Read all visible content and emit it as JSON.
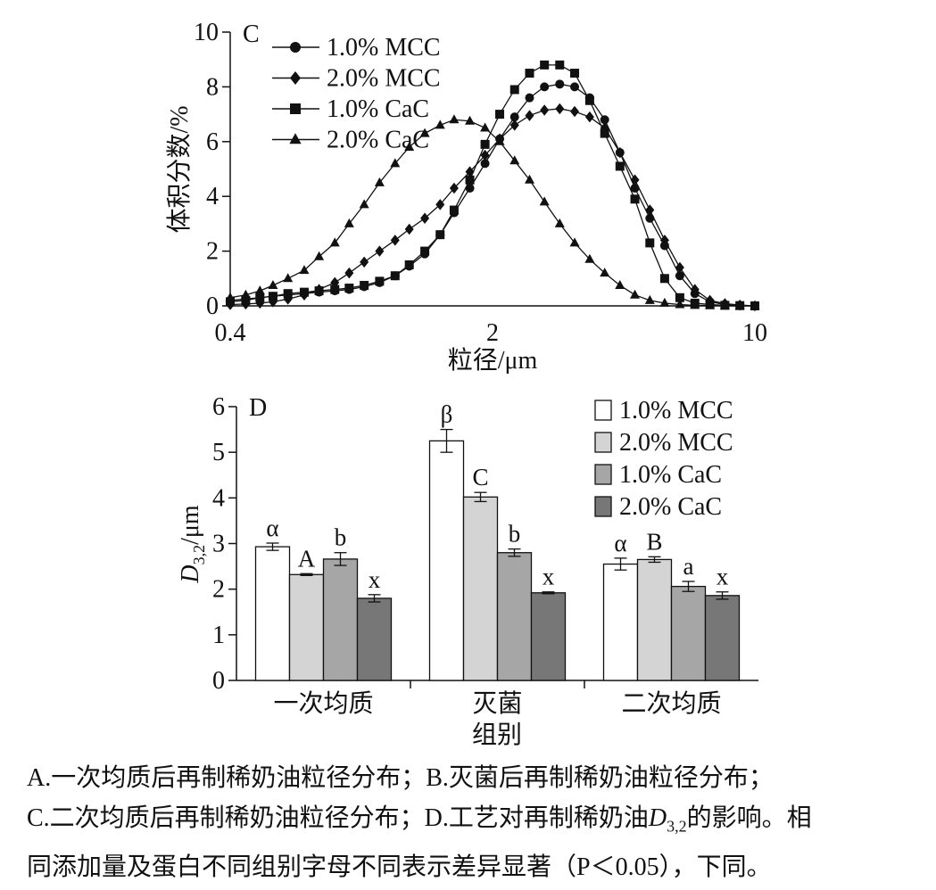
{
  "chart_data": [
    {
      "type": "line",
      "panel_label": "C",
      "xlabel": "粒径/μm",
      "ylabel": "体积分数/%",
      "x_scale": "log",
      "xlim": [
        0.4,
        10
      ],
      "ylim": [
        0,
        10
      ],
      "x_ticks": [
        "0.4",
        "2",
        "10"
      ],
      "y_ticks": [
        "0",
        "2",
        "4",
        "6",
        "8",
        "10"
      ],
      "legend_position": "top-left",
      "x": [
        0.4,
        0.44,
        0.48,
        0.52,
        0.57,
        0.63,
        0.69,
        0.76,
        0.83,
        0.91,
        1.0,
        1.1,
        1.2,
        1.32,
        1.45,
        1.58,
        1.74,
        1.91,
        2.09,
        2.29,
        2.51,
        2.75,
        3.02,
        3.31,
        3.63,
        3.98,
        4.37,
        4.79,
        5.25,
        5.75,
        6.31,
        6.92,
        7.59,
        8.32,
        9.12,
        10.0
      ],
      "series": [
        {
          "name": "1.0% MCC",
          "marker": "circle",
          "values": [
            0.2,
            0.25,
            0.3,
            0.35,
            0.4,
            0.45,
            0.5,
            0.55,
            0.6,
            0.7,
            0.85,
            1.1,
            1.45,
            1.9,
            2.6,
            3.4,
            4.3,
            5.2,
            6.1,
            6.9,
            7.6,
            8.0,
            8.1,
            8.0,
            7.6,
            6.8,
            5.6,
            4.3,
            3.2,
            2.2,
            1.1,
            0.45,
            0.15,
            0.05,
            0.02,
            0.0
          ]
        },
        {
          "name": "2.0% MCC",
          "marker": "diamond",
          "values": [
            0.05,
            0.07,
            0.1,
            0.15,
            0.25,
            0.4,
            0.6,
            0.85,
            1.2,
            1.6,
            2.0,
            2.4,
            2.8,
            3.2,
            3.7,
            4.3,
            4.9,
            5.5,
            6.1,
            6.6,
            6.95,
            7.15,
            7.2,
            7.1,
            6.9,
            6.5,
            5.6,
            4.6,
            3.5,
            2.4,
            1.4,
            0.6,
            0.2,
            0.08,
            0.03,
            0.0
          ]
        },
        {
          "name": "1.0% CaC",
          "marker": "square",
          "values": [
            0.15,
            0.2,
            0.3,
            0.35,
            0.45,
            0.5,
            0.55,
            0.6,
            0.65,
            0.75,
            0.9,
            1.1,
            1.5,
            2.0,
            2.6,
            3.5,
            4.6,
            5.9,
            7.0,
            7.9,
            8.5,
            8.8,
            8.8,
            8.5,
            7.5,
            6.3,
            5.1,
            3.9,
            2.3,
            1.0,
            0.3,
            0.1,
            0.05,
            0.02,
            0.01,
            0.0
          ]
        },
        {
          "name": "2.0% CaC",
          "marker": "triangle",
          "values": [
            0.3,
            0.4,
            0.55,
            0.75,
            1.0,
            1.3,
            1.8,
            2.3,
            3.0,
            3.7,
            4.5,
            5.2,
            5.8,
            6.3,
            6.6,
            6.8,
            6.75,
            6.5,
            6.0,
            5.3,
            4.6,
            3.8,
            3.0,
            2.3,
            1.7,
            1.2,
            0.75,
            0.4,
            0.2,
            0.1,
            0.05,
            0.02,
            0.01,
            0.0,
            0.0,
            0.0
          ]
        }
      ]
    },
    {
      "type": "bar",
      "panel_label": "D",
      "xlabel": "组别",
      "ylabel": "D3,2/μm",
      "ylim": [
        0,
        6
      ],
      "y_ticks": [
        "0",
        "1",
        "2",
        "3",
        "4",
        "5",
        "6"
      ],
      "legend_position": "top-right",
      "categories": [
        "一次均质",
        "灭菌",
        "二次均质"
      ],
      "series": [
        {
          "name": "1.0% MCC",
          "color": "#ffffff",
          "values": [
            2.93,
            5.25,
            2.55
          ],
          "errors": [
            0.08,
            0.25,
            0.13
          ],
          "letters": [
            "α",
            "β",
            "α"
          ]
        },
        {
          "name": "2.0% MCC",
          "color": "#d4d4d4",
          "values": [
            2.32,
            4.02,
            2.65
          ],
          "errors": [
            0.02,
            0.1,
            0.06
          ],
          "letters": [
            "A",
            "C",
            "B"
          ]
        },
        {
          "name": "1.0% CaC",
          "color": "#a6a6a6",
          "values": [
            2.66,
            2.8,
            2.06
          ],
          "errors": [
            0.14,
            0.08,
            0.11
          ],
          "letters": [
            "b",
            "b",
            "a"
          ]
        },
        {
          "name": "2.0% CaC",
          "color": "#777777",
          "values": [
            1.8,
            1.92,
            1.86
          ],
          "errors": [
            0.08,
            0.02,
            0.08
          ],
          "letters": [
            "x",
            "x",
            "x"
          ]
        }
      ]
    }
  ],
  "caption": {
    "line1": "A.一次均质后再制稀奶油粒径分布；B.灭菌后再制稀奶油粒径分布；",
    "line2_pre": "C.二次均质后再制稀奶油粒径分布；D.工艺对再制稀奶油",
    "line2_var": "D",
    "line2_sub": "3,2",
    "line2_post": "的影响。相",
    "line3": "同添加量及蛋白不同组别字母不同表示差异显著（P＜0.05），下同。"
  }
}
